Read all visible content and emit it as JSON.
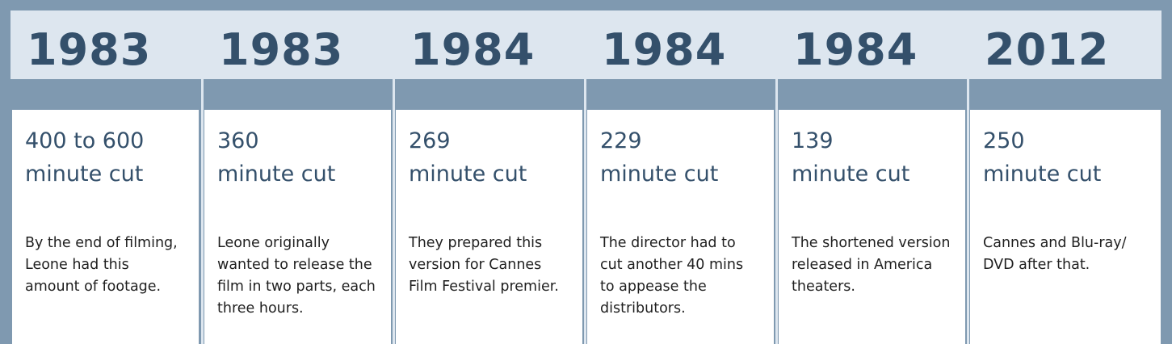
{
  "timeline": [
    {
      "year": "1983",
      "length": "400 to 600",
      "unit": "minute cut",
      "desc_lines": [
        "By the end of filming,",
        "Leone had this",
        "amount of footage."
      ]
    },
    {
      "year": "1983",
      "length": "360",
      "unit": "minute cut",
      "desc_lines": [
        "Leone originally",
        "wanted to release the",
        "film in two parts, each",
        "three hours."
      ]
    },
    {
      "year": "1984",
      "length": "269",
      "unit": "minute cut",
      "desc_lines": [
        "They prepared this",
        "version for Cannes",
        "Film Festival premier."
      ]
    },
    {
      "year": "1984",
      "length": "229",
      "unit": "minute cut",
      "desc_lines": [
        "The director had to",
        "cut another 40 mins",
        "to appease the",
        "distributors."
      ]
    },
    {
      "year": "1984",
      "length": "139",
      "unit": "minute cut",
      "desc_lines": [
        "The shortened version",
        "released in America",
        "theaters."
      ]
    },
    {
      "year": "2012",
      "length": "250",
      "unit": "minute cut",
      "desc_lines": [
        "Cannes and Blu-ray/",
        "DVD after that."
      ]
    }
  ]
}
